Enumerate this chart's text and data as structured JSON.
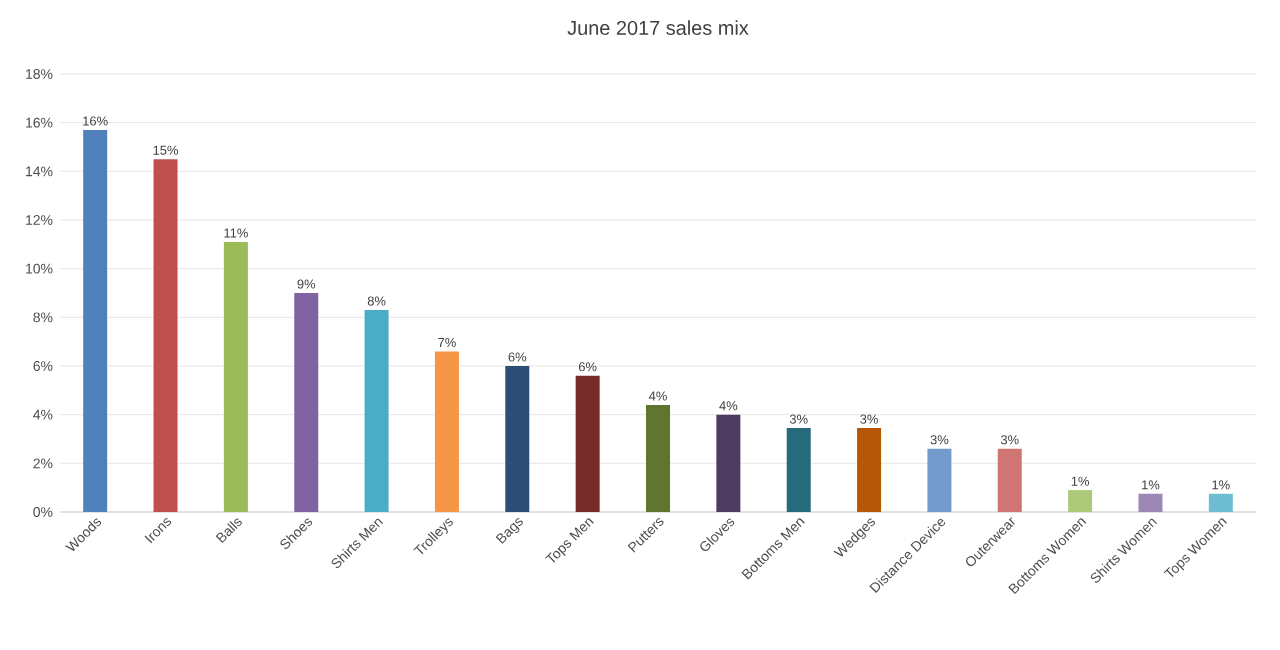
{
  "chart_data": {
    "type": "bar",
    "title": "June 2017 sales mix",
    "categories": [
      "Woods",
      "Irons",
      "Balls",
      "Shoes",
      "Shirts Men",
      "Trolleys",
      "Bags",
      "Tops Men",
      "Putters",
      "Gloves",
      "Bottoms Men",
      "Wedges",
      "Distance Device",
      "Outerwear",
      "Bottoms Women",
      "Shirts Women",
      "Tops Women"
    ],
    "values": [
      15.7,
      14.5,
      11.1,
      9.0,
      8.3,
      6.6,
      6.0,
      5.6,
      4.4,
      4.0,
      3.45,
      3.45,
      2.6,
      2.6,
      0.9,
      0.75,
      0.75
    ],
    "value_labels": [
      "16%",
      "15%",
      "11%",
      "9%",
      "8%",
      "7%",
      "6%",
      "6%",
      "4%",
      "4%",
      "3%",
      "3%",
      "3%",
      "3%",
      "1%",
      "1%",
      "1%"
    ],
    "colors": [
      "#4f81bd",
      "#c0504d",
      "#9bbb59",
      "#8064a2",
      "#4bacc6",
      "#f79646",
      "#2c4d75",
      "#772c2a",
      "#5f7530",
      "#4d3b62",
      "#276a7c",
      "#b65708",
      "#729aca",
      "#d07572",
      "#afc97a",
      "#9c87b5",
      "#6fbdd1"
    ],
    "ylim": [
      0,
      18
    ],
    "yticks": [
      {
        "value": 0,
        "label": "0%"
      },
      {
        "value": 2,
        "label": "2%"
      },
      {
        "value": 4,
        "label": "4%"
      },
      {
        "value": 6,
        "label": "6%"
      },
      {
        "value": 8,
        "label": "8%"
      },
      {
        "value": 10,
        "label": "10%"
      },
      {
        "value": 12,
        "label": "12%"
      },
      {
        "value": 14,
        "label": "14%"
      },
      {
        "value": 16,
        "label": "16%"
      },
      {
        "value": 18,
        "label": "18%"
      }
    ],
    "grid": "y"
  }
}
